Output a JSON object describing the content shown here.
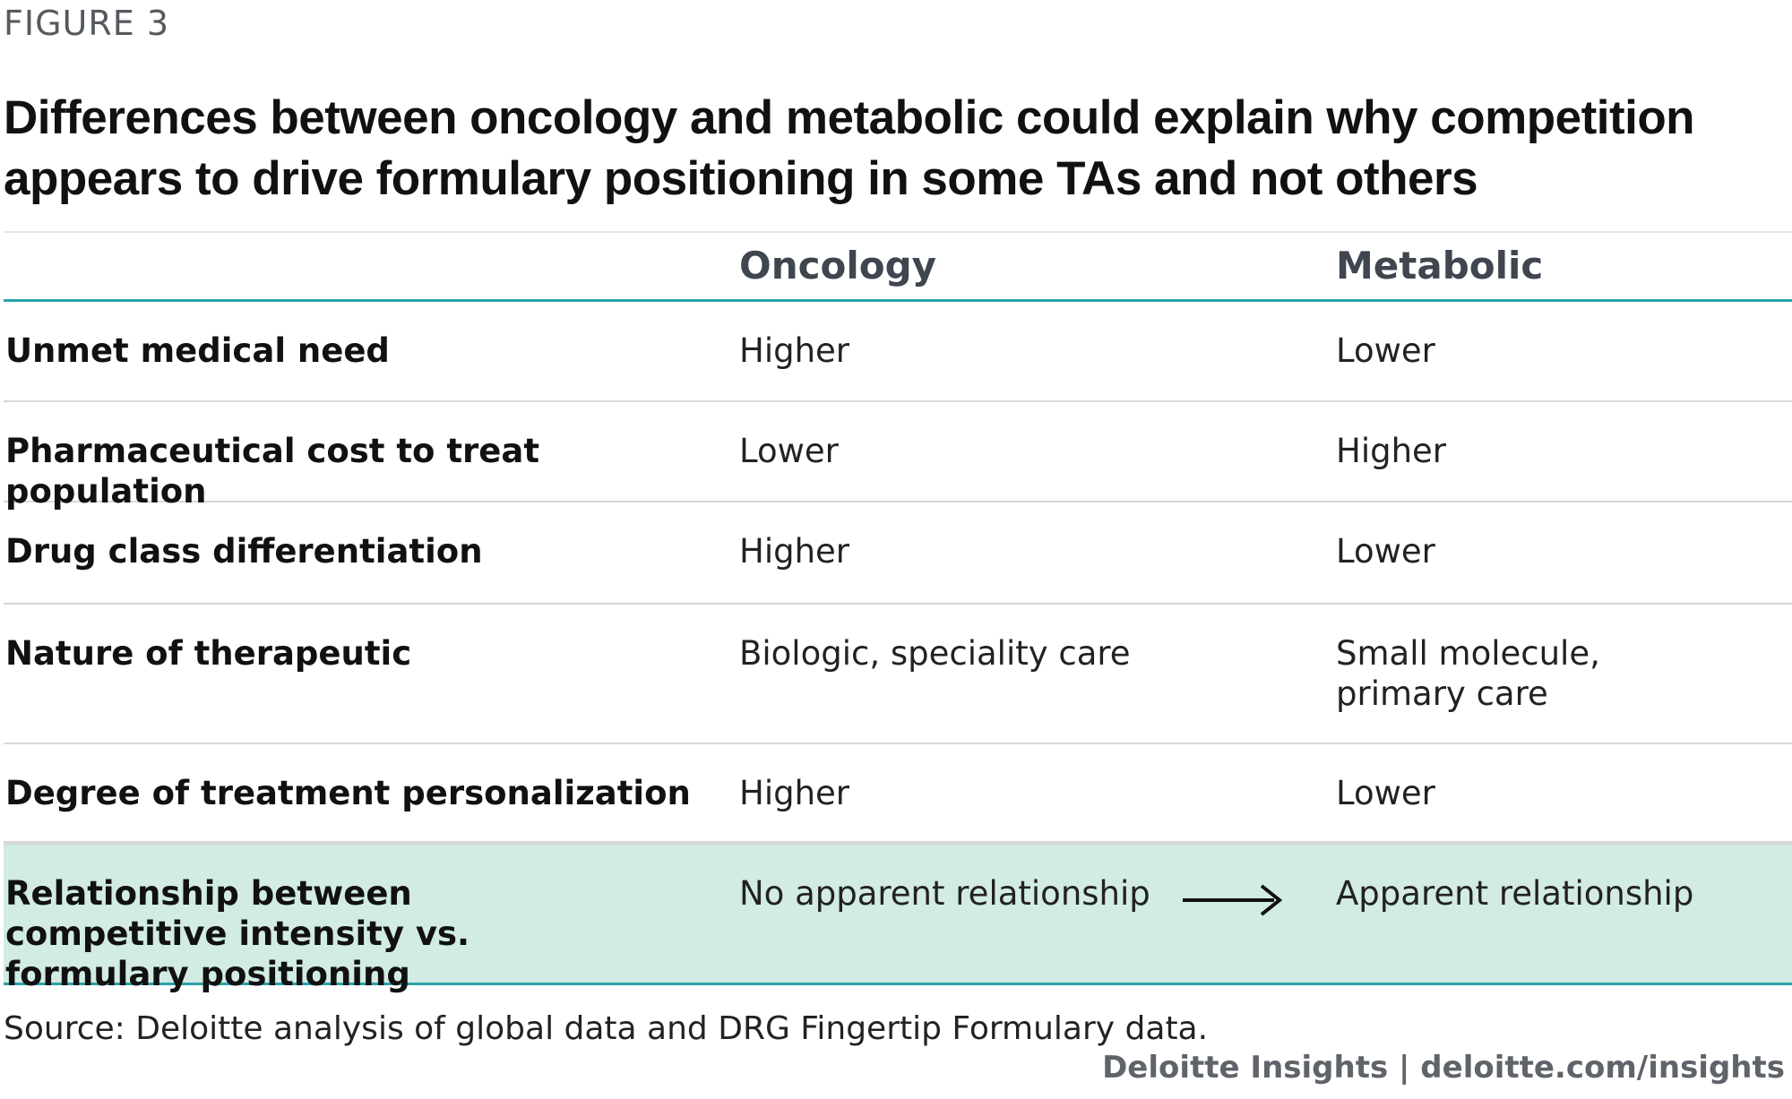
{
  "figure_label": "FIGURE 3",
  "title": "Differences between oncology and metabolic could explain why competition appears to drive formulary positioning in some TAs and not others",
  "table": {
    "headers": [
      "",
      "Oncology",
      "Metabolic"
    ],
    "rows": [
      {
        "label": "Unmet medical need",
        "oncology": "Higher",
        "metabolic": "Lower"
      },
      {
        "label": "Pharmaceutical cost to treat population",
        "oncology": "Lower",
        "metabolic": "Higher"
      },
      {
        "label": "Drug class differentiation",
        "oncology": "Higher",
        "metabolic": "Lower"
      },
      {
        "label": "Nature of therapeutic",
        "oncology": "Biologic, speciality care",
        "metabolic": "Small molecule, primary care"
      },
      {
        "label": "Degree of treatment personalization",
        "oncology": "Higher",
        "metabolic": "Lower"
      },
      {
        "label": "Relationship between competitive intensity vs. formulary positioning",
        "oncology": "No apparent relationship",
        "metabolic": "Apparent relationship"
      }
    ]
  },
  "icons": {
    "arrow": "right-arrow-icon"
  },
  "colors": {
    "accent_teal": "#2aa3a8",
    "highlight_row": "#d2ebe3"
  },
  "source": "Source: Deloitte analysis of global data and DRG Fingertip Formulary data.",
  "footer": "Deloitte Insights | deloitte.com/insights"
}
